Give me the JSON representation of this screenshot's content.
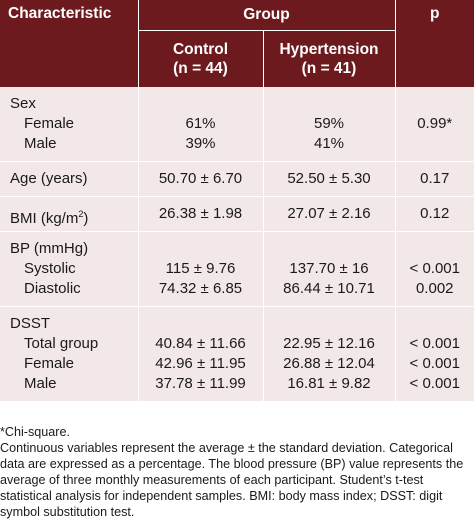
{
  "header": {
    "characteristic": "Characteristic",
    "group": "Group",
    "p": "p",
    "control": "Control",
    "control_n": "(n = 44)",
    "hypertension": "Hypertension",
    "hypertension_n": "(n = 41)"
  },
  "rows": {
    "sex": {
      "label": "Sex",
      "female_label": "Female",
      "male_label": "Male",
      "female_control": "61%",
      "female_hyp": "59%",
      "male_control": "39%",
      "male_hyp": "41%",
      "p": "0.99*"
    },
    "age": {
      "label": "Age (years)",
      "control": "50.70 ± 6.70",
      "hyp": "52.50 ± 5.30",
      "p": "0.17"
    },
    "bmi": {
      "label": "BMI (kg/m",
      "sup": "2",
      "label_end": ")",
      "control": "26.38 ± 1.98",
      "hyp": "27.07 ± 2.16",
      "p": "0.12"
    },
    "bp": {
      "label": "BP (mmHg)",
      "sys_label": "Systolic",
      "dia_label": "Diastolic",
      "sys_control": "115 ± 9.76",
      "sys_hyp": "137.70 ± 16",
      "sys_p": "< 0.001",
      "dia_control": "74.32 ± 6.85",
      "dia_hyp": "86.44 ± 10.71",
      "dia_p": "0.002"
    },
    "dsst": {
      "label": "DSST",
      "total_label": "Total group",
      "female_label": "Female",
      "male_label": "Male",
      "total_control": "40.84 ± 11.66",
      "total_hyp": "22.95 ± 12.16",
      "total_p": "< 0.001",
      "female_control": "42.96 ± 11.95",
      "female_hyp": "26.88 ± 12.04",
      "female_p": "< 0.001",
      "male_control": "37.78 ± 11.99",
      "male_hyp": "16.81 ± 9.82",
      "male_p": "< 0.001"
    }
  },
  "notes": [
    "*Chi-square.",
    "Continuous variables represent the average ± the standard deviation. Categorical",
    "data are expressed as a percentage. The blood pressure (BP) value represents the",
    "average of three monthly measurements of each participant. Student’s t-test",
    "statistical analysis for independent samples. BMI: body mass index; DSST: digit",
    "symbol substitution test."
  ]
}
